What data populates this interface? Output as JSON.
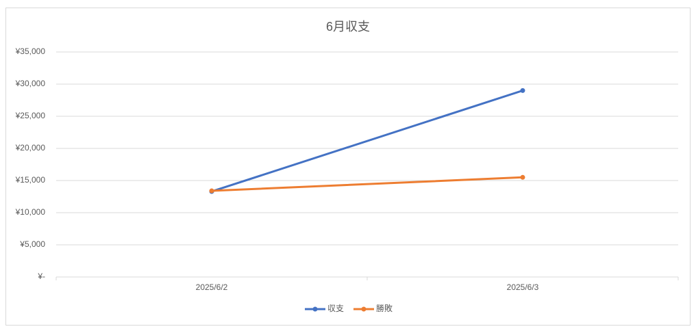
{
  "chart_data": {
    "type": "line",
    "title": "6月収支",
    "categories": [
      "2025/6/2",
      "2025/6/3"
    ],
    "series": [
      {
        "name": "収支",
        "color": "#4472c4",
        "values": [
          13300,
          29000
        ]
      },
      {
        "name": "勝敗",
        "color": "#ed7d31",
        "values": [
          13400,
          15500
        ]
      }
    ],
    "ylim": [
      0,
      35000
    ],
    "yticks": [
      {
        "value": 0,
        "label": "¥-"
      },
      {
        "value": 5000,
        "label": "¥5,000"
      },
      {
        "value": 10000,
        "label": "¥10,000"
      },
      {
        "value": 15000,
        "label": "¥15,000"
      },
      {
        "value": 20000,
        "label": "¥20,000"
      },
      {
        "value": 25000,
        "label": "¥25,000"
      },
      {
        "value": 30000,
        "label": "¥30,000"
      },
      {
        "value": 35000,
        "label": "¥35,000"
      }
    ],
    "grid": true,
    "legend": "bottom"
  }
}
